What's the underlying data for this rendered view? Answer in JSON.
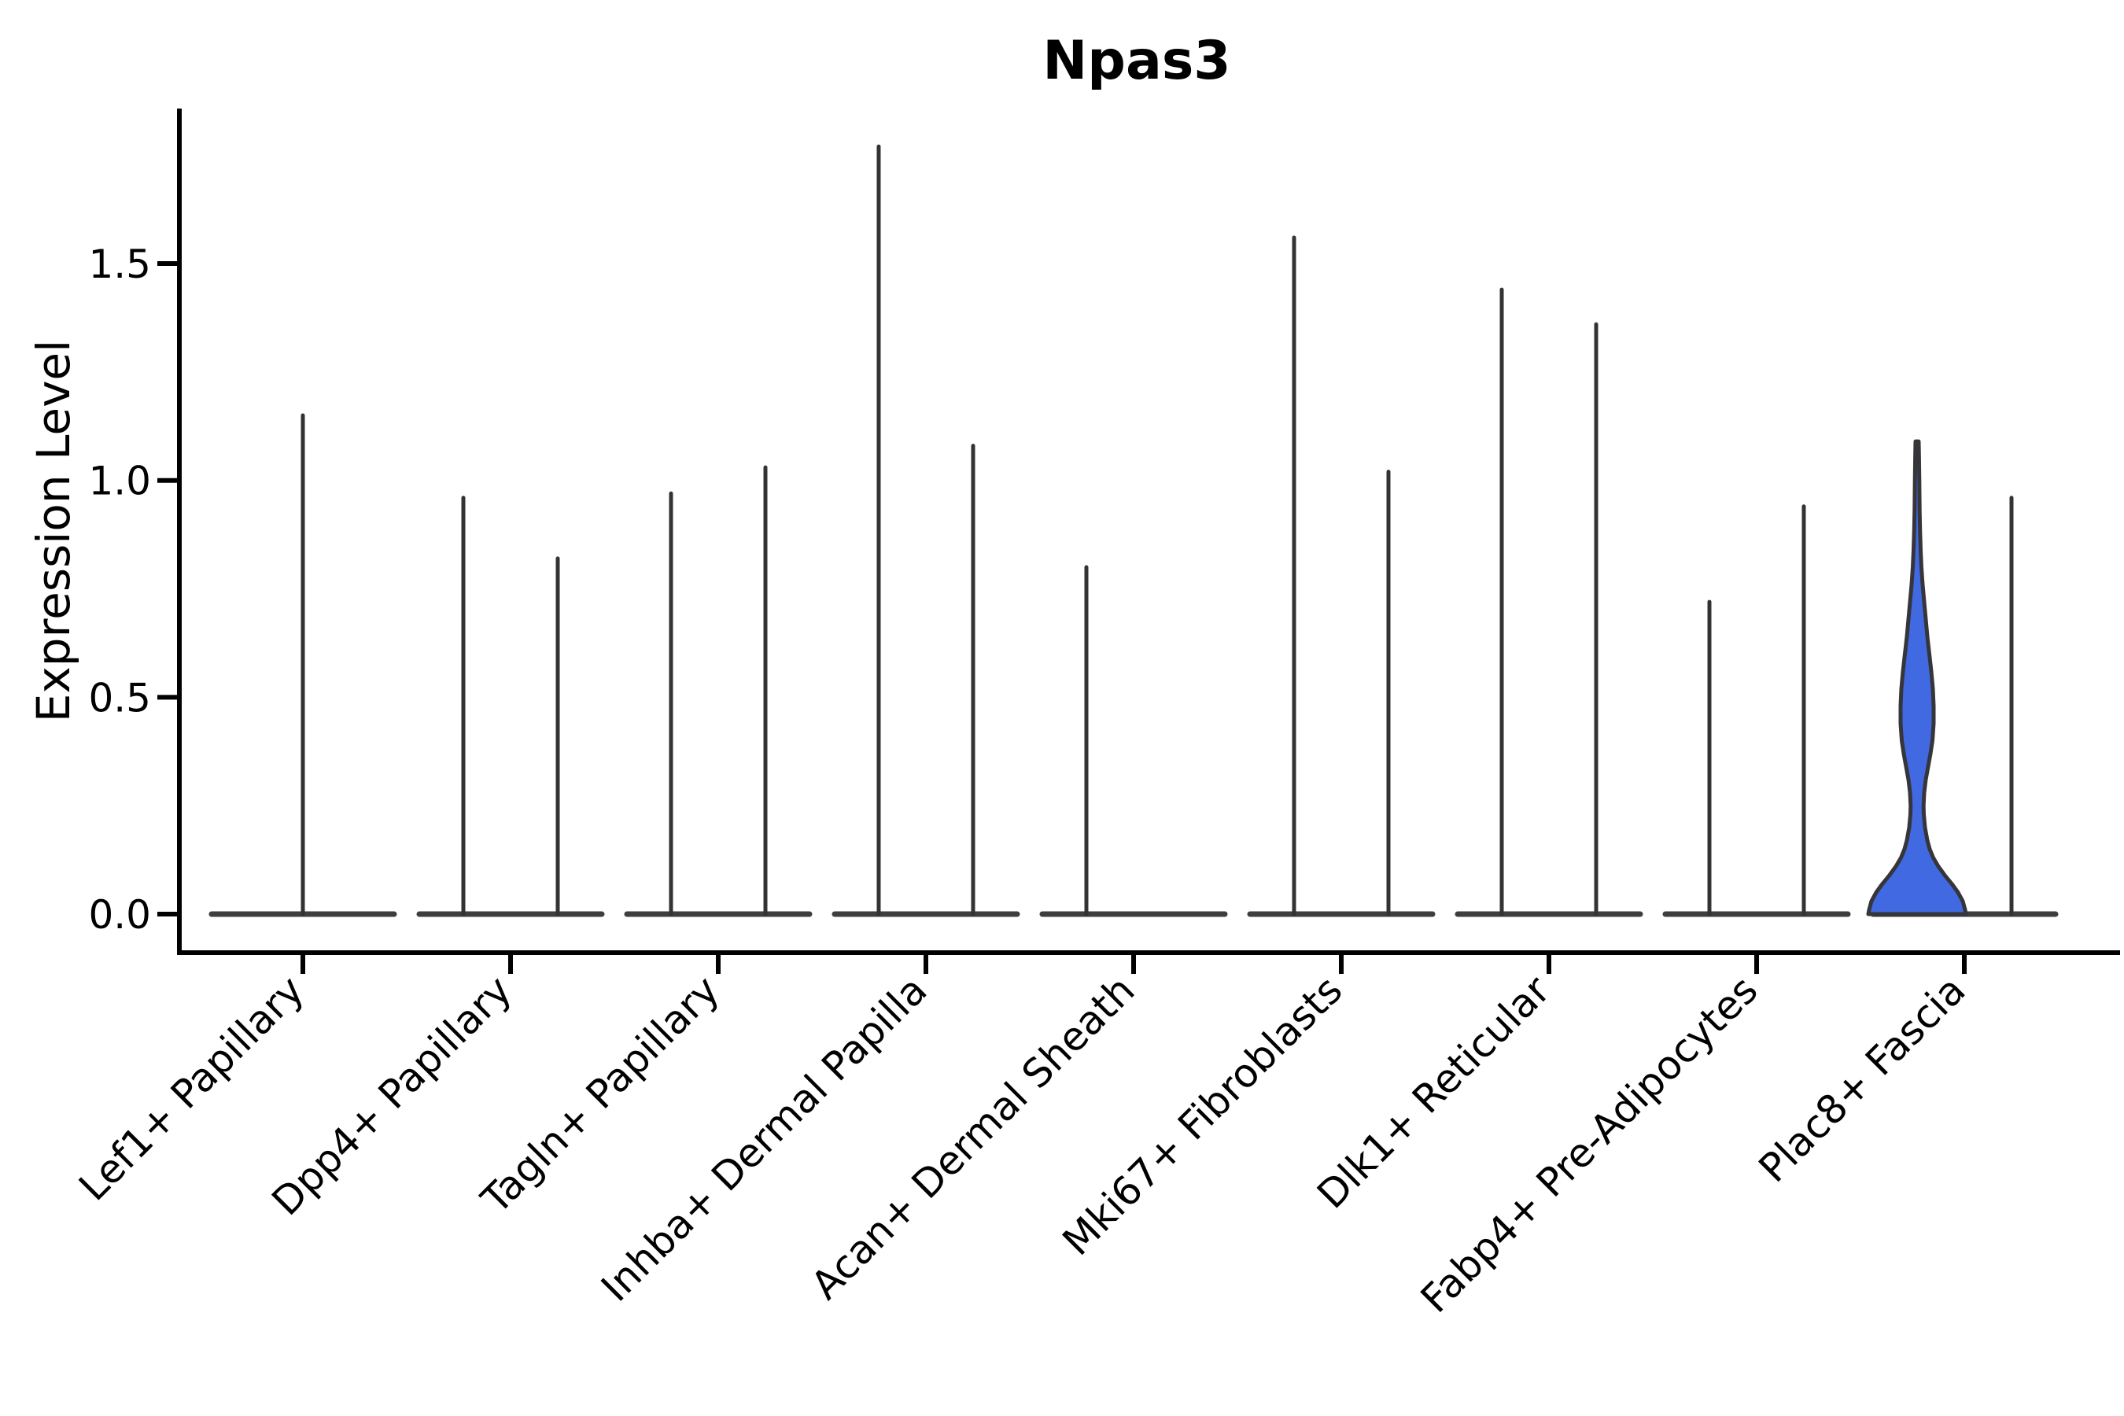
{
  "figure": {
    "background": "#ffffff"
  },
  "chart_data": {
    "type": "violin",
    "title": "Npas3",
    "xlabel": "",
    "ylabel": "Expression Level",
    "ylim": [
      0,
      1.85
    ],
    "yticks": [
      0,
      0.5,
      1.0,
      1.5
    ],
    "ytick_labels": [
      "0.0",
      "0.5",
      "1.0",
      "1.5"
    ],
    "grid": false,
    "legend": "none",
    "x_tick_rotation": 45,
    "zero_density_baseline": true,
    "colors": {
      "violin_fill": "#4169e1",
      "violin_outline": "#35353a",
      "spike_line": "#333333",
      "baseline_line": "#3e3e3e",
      "axis": "#000000",
      "text": "#000000"
    },
    "categories": [
      "Lef1+ Papillary",
      "Dpp4+ Papillary",
      "Tagln+ Papillary",
      "Inhba+ Dermal Papilla",
      "Acan+ Dermal Sheath",
      "Mki67+ Fibroblasts",
      "Dlk1+ Reticular",
      "Fabp4+ Pre-Adipocytes",
      "Plac8+ Fascia"
    ],
    "violins": [
      {
        "category_index": 0,
        "category": "Lef1+ Papillary",
        "slot": "center",
        "shape": "spike",
        "max": 1.15
      },
      {
        "category_index": 1,
        "category": "Dpp4+ Papillary",
        "slot": "left",
        "shape": "spike",
        "max": 0.96
      },
      {
        "category_index": 1,
        "category": "Dpp4+ Papillary",
        "slot": "right",
        "shape": "spike",
        "max": 0.82
      },
      {
        "category_index": 2,
        "category": "Tagln+ Papillary",
        "slot": "left",
        "shape": "spike",
        "max": 0.97
      },
      {
        "category_index": 2,
        "category": "Tagln+ Papillary",
        "slot": "right",
        "shape": "spike",
        "max": 1.03
      },
      {
        "category_index": 3,
        "category": "Inhba+ Dermal Papilla",
        "slot": "left",
        "shape": "spike",
        "max": 1.77
      },
      {
        "category_index": 3,
        "category": "Inhba+ Dermal Papilla",
        "slot": "right",
        "shape": "spike",
        "max": 1.08
      },
      {
        "category_index": 4,
        "category": "Acan+ Dermal Sheath",
        "slot": "left",
        "shape": "spike",
        "max": 0.8
      },
      {
        "category_index": 4,
        "category": "Acan+ Dermal Sheath",
        "slot": "right",
        "shape": "flat",
        "max": 0.0
      },
      {
        "category_index": 5,
        "category": "Mki67+ Fibroblasts",
        "slot": "left",
        "shape": "spike",
        "max": 1.56
      },
      {
        "category_index": 5,
        "category": "Mki67+ Fibroblasts",
        "slot": "right",
        "shape": "spike",
        "max": 1.02
      },
      {
        "category_index": 6,
        "category": "Dlk1+ Reticular",
        "slot": "left",
        "shape": "spike",
        "max": 1.44
      },
      {
        "category_index": 6,
        "category": "Dlk1+ Reticular",
        "slot": "right",
        "shape": "spike",
        "max": 1.36
      },
      {
        "category_index": 7,
        "category": "Fabp4+ Pre-Adipocytes",
        "slot": "left",
        "shape": "spike",
        "max": 0.72
      },
      {
        "category_index": 7,
        "category": "Fabp4+ Pre-Adipocytes",
        "slot": "right",
        "shape": "spike",
        "max": 0.94
      },
      {
        "category_index": 8,
        "category": "Plac8+ Fascia",
        "slot": "left",
        "shape": "violin",
        "max": 1.09,
        "fill": "#4169e1",
        "profile": [
          [
            0.0,
            62
          ],
          [
            0.01,
            61
          ],
          [
            0.03,
            58
          ],
          [
            0.05,
            52
          ],
          [
            0.07,
            44
          ],
          [
            0.09,
            35
          ],
          [
            0.11,
            27
          ],
          [
            0.13,
            20.5
          ],
          [
            0.15,
            16
          ],
          [
            0.17,
            13
          ],
          [
            0.2,
            10
          ],
          [
            0.23,
            8.5
          ],
          [
            0.25,
            8.2
          ],
          [
            0.28,
            9
          ],
          [
            0.31,
            11
          ],
          [
            0.34,
            14
          ],
          [
            0.37,
            17
          ],
          [
            0.4,
            19.5
          ],
          [
            0.44,
            21
          ],
          [
            0.48,
            21
          ],
          [
            0.52,
            20
          ],
          [
            0.56,
            18
          ],
          [
            0.6,
            15.5
          ],
          [
            0.64,
            13
          ],
          [
            0.68,
            11
          ],
          [
            0.72,
            9
          ],
          [
            0.76,
            7
          ],
          [
            0.8,
            5.5
          ],
          [
            0.84,
            4.5
          ],
          [
            0.88,
            3.8
          ],
          [
            0.93,
            3.2
          ],
          [
            1.0,
            2.8
          ],
          [
            1.05,
            2.4
          ],
          [
            1.09,
            2.0
          ]
        ]
      },
      {
        "category_index": 8,
        "category": "Plac8+ Fascia",
        "slot": "right",
        "shape": "spike",
        "max": 0.96
      }
    ]
  }
}
